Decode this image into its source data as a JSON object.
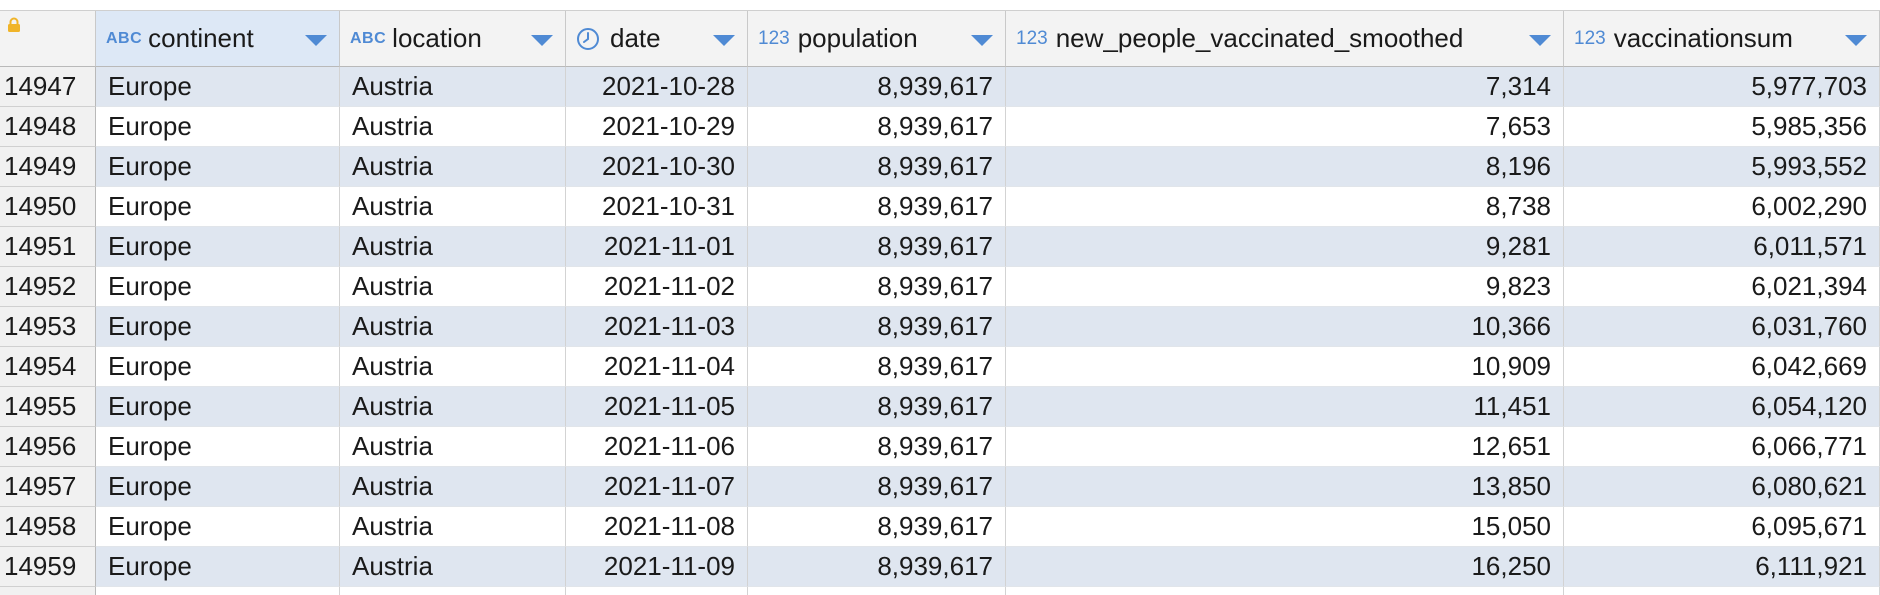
{
  "columns": [
    {
      "type_badge": "ABC",
      "label": "continent",
      "icon": "abc-type-icon"
    },
    {
      "type_badge": "ABC",
      "label": "location",
      "icon": "abc-type-icon"
    },
    {
      "type_badge": "",
      "label": "date",
      "icon": "clock-icon"
    },
    {
      "type_badge": "123",
      "label": "population",
      "icon": "number-type-icon"
    },
    {
      "type_badge": "123",
      "label": "new_people_vaccinated_smoothed",
      "icon": "number-type-icon"
    },
    {
      "type_badge": "123",
      "label": "vaccinationsum",
      "icon": "number-type-icon"
    }
  ],
  "rows": [
    {
      "num": "14947",
      "continent": "Europe",
      "location": "Austria",
      "date": "2021-10-28",
      "population": "8,939,617",
      "new": "7,314",
      "sum": "5,977,703"
    },
    {
      "num": "14948",
      "continent": "Europe",
      "location": "Austria",
      "date": "2021-10-29",
      "population": "8,939,617",
      "new": "7,653",
      "sum": "5,985,356"
    },
    {
      "num": "14949",
      "continent": "Europe",
      "location": "Austria",
      "date": "2021-10-30",
      "population": "8,939,617",
      "new": "8,196",
      "sum": "5,993,552"
    },
    {
      "num": "14950",
      "continent": "Europe",
      "location": "Austria",
      "date": "2021-10-31",
      "population": "8,939,617",
      "new": "8,738",
      "sum": "6,002,290"
    },
    {
      "num": "14951",
      "continent": "Europe",
      "location": "Austria",
      "date": "2021-11-01",
      "population": "8,939,617",
      "new": "9,281",
      "sum": "6,011,571"
    },
    {
      "num": "14952",
      "continent": "Europe",
      "location": "Austria",
      "date": "2021-11-02",
      "population": "8,939,617",
      "new": "9,823",
      "sum": "6,021,394"
    },
    {
      "num": "14953",
      "continent": "Europe",
      "location": "Austria",
      "date": "2021-11-03",
      "population": "8,939,617",
      "new": "10,366",
      "sum": "6,031,760"
    },
    {
      "num": "14954",
      "continent": "Europe",
      "location": "Austria",
      "date": "2021-11-04",
      "population": "8,939,617",
      "new": "10,909",
      "sum": "6,042,669"
    },
    {
      "num": "14955",
      "continent": "Europe",
      "location": "Austria",
      "date": "2021-11-05",
      "population": "8,939,617",
      "new": "11,451",
      "sum": "6,054,120"
    },
    {
      "num": "14956",
      "continent": "Europe",
      "location": "Austria",
      "date": "2021-11-06",
      "population": "8,939,617",
      "new": "12,651",
      "sum": "6,066,771"
    },
    {
      "num": "14957",
      "continent": "Europe",
      "location": "Austria",
      "date": "2021-11-07",
      "population": "8,939,617",
      "new": "13,850",
      "sum": "6,080,621"
    },
    {
      "num": "14958",
      "continent": "Europe",
      "location": "Austria",
      "date": "2021-11-08",
      "population": "8,939,617",
      "new": "15,050",
      "sum": "6,095,671"
    },
    {
      "num": "14959",
      "continent": "Europe",
      "location": "Austria",
      "date": "2021-11-09",
      "population": "8,939,617",
      "new": "16,250",
      "sum": "6,111,921"
    }
  ],
  "colors": {
    "accent": "#4f8ad4",
    "row_stripe": "#dfe6f0",
    "selected_header": "#dde8f6",
    "lock": "#f0b429"
  }
}
